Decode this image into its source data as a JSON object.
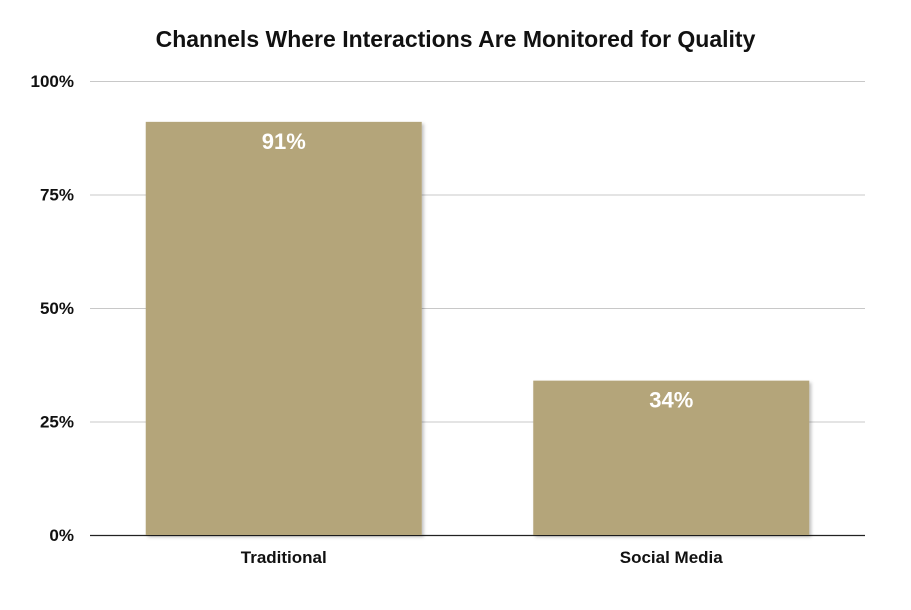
{
  "chart_data": {
    "type": "bar",
    "title": "Channels Where Interactions Are Monitored for Quality",
    "categories": [
      "Traditional",
      "Social Media"
    ],
    "values": [
      91,
      34
    ],
    "data_labels": [
      "91%",
      "34%"
    ],
    "ylim": [
      0,
      100
    ],
    "yticks": [
      0,
      25,
      50,
      75,
      100
    ],
    "ytick_labels": [
      "0%",
      "25%",
      "50%",
      "75%",
      "100%"
    ],
    "grid": true,
    "legend": "none",
    "bar_color": "#b4a57a",
    "label_color": "#ffffff",
    "grid_color": "#c8c8c8"
  }
}
